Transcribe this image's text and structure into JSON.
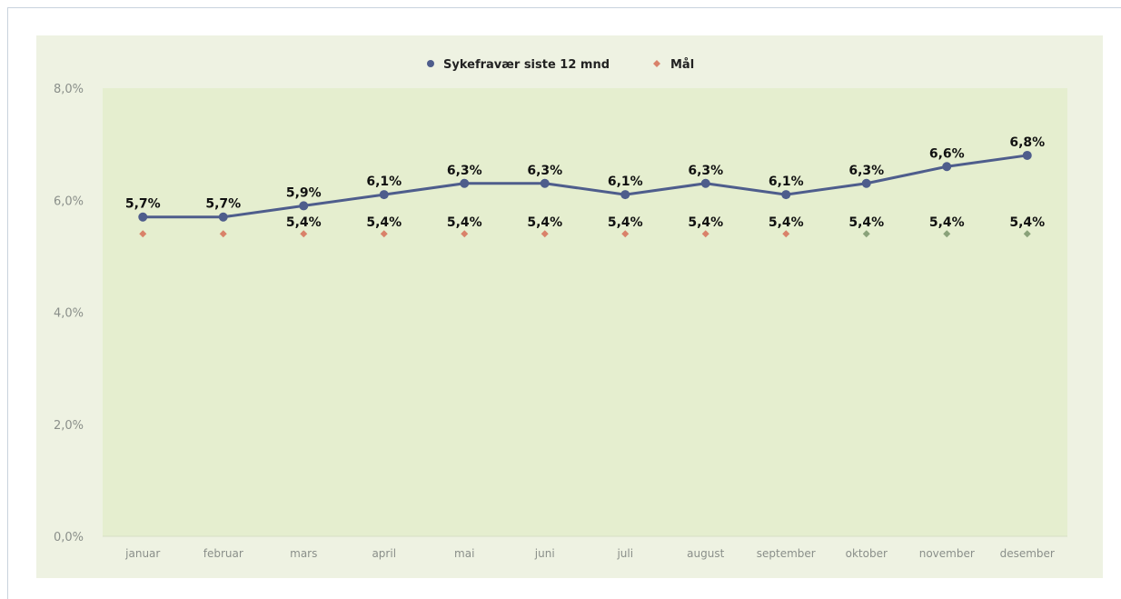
{
  "chart_data": {
    "type": "line",
    "categories": [
      "januar",
      "februar",
      "mars",
      "april",
      "mai",
      "juni",
      "juli",
      "august",
      "september",
      "oktober",
      "november",
      "desember"
    ],
    "series": [
      {
        "name": "Sykefravær siste 12 mnd",
        "values": [
          5.7,
          5.7,
          5.9,
          6.1,
          6.3,
          6.3,
          6.1,
          6.3,
          6.1,
          6.3,
          6.6,
          6.8
        ],
        "labels": [
          "5,7%",
          "5,7%",
          "5,9%",
          "6,1%",
          "6,3%",
          "6,3%",
          "6,1%",
          "6,3%",
          "6,1%",
          "6,3%",
          "6,6%",
          "6,8%"
        ],
        "color": "#4e5d8c",
        "marker": "circle"
      },
      {
        "name": "Mål",
        "values": [
          5.4,
          5.4,
          5.4,
          5.4,
          5.4,
          5.4,
          5.4,
          5.4,
          5.4,
          5.4,
          5.4,
          5.4
        ],
        "labels": [
          "",
          "",
          "5,4%",
          "5,4%",
          "5,4%",
          "5,4%",
          "5,4%",
          "5,4%",
          "5,4%",
          "5,4%",
          "5,4%",
          "5,4%"
        ],
        "marker_colors": [
          "#d9826a",
          "#d9826a",
          "#d9826a",
          "#d9826a",
          "#d9826a",
          "#d9826a",
          "#d9826a",
          "#d9826a",
          "#d9826a",
          "#8aa27a",
          "#8aa27a",
          "#8aa27a"
        ],
        "marker": "diamond"
      }
    ],
    "y_ticks": [
      {
        "value": 0,
        "label": "0,0%"
      },
      {
        "value": 2,
        "label": "2,0%"
      },
      {
        "value": 4,
        "label": "4,0%"
      },
      {
        "value": 6,
        "label": "6,0%"
      },
      {
        "value": 8,
        "label": "8,0%"
      }
    ],
    "ylim": [
      0,
      8
    ],
    "grid": false,
    "legend_position": "top-center",
    "plot_background": "#e5eecf",
    "panel_background": "#eef2e2"
  }
}
